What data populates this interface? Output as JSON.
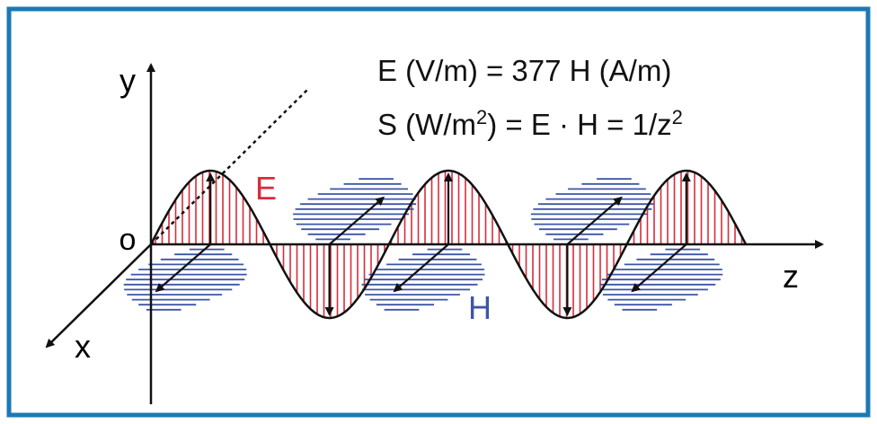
{
  "labels": {
    "y": "y",
    "o": "o",
    "x": "x",
    "z": "z",
    "e": "E",
    "h": "H"
  },
  "equations": [
    {
      "parts": [
        "E (V/m) = 377 H (A/m)"
      ]
    },
    {
      "parts": [
        "S (W/m",
        "2",
        ") = E · H = 1/z",
        "2"
      ]
    }
  ]
}
